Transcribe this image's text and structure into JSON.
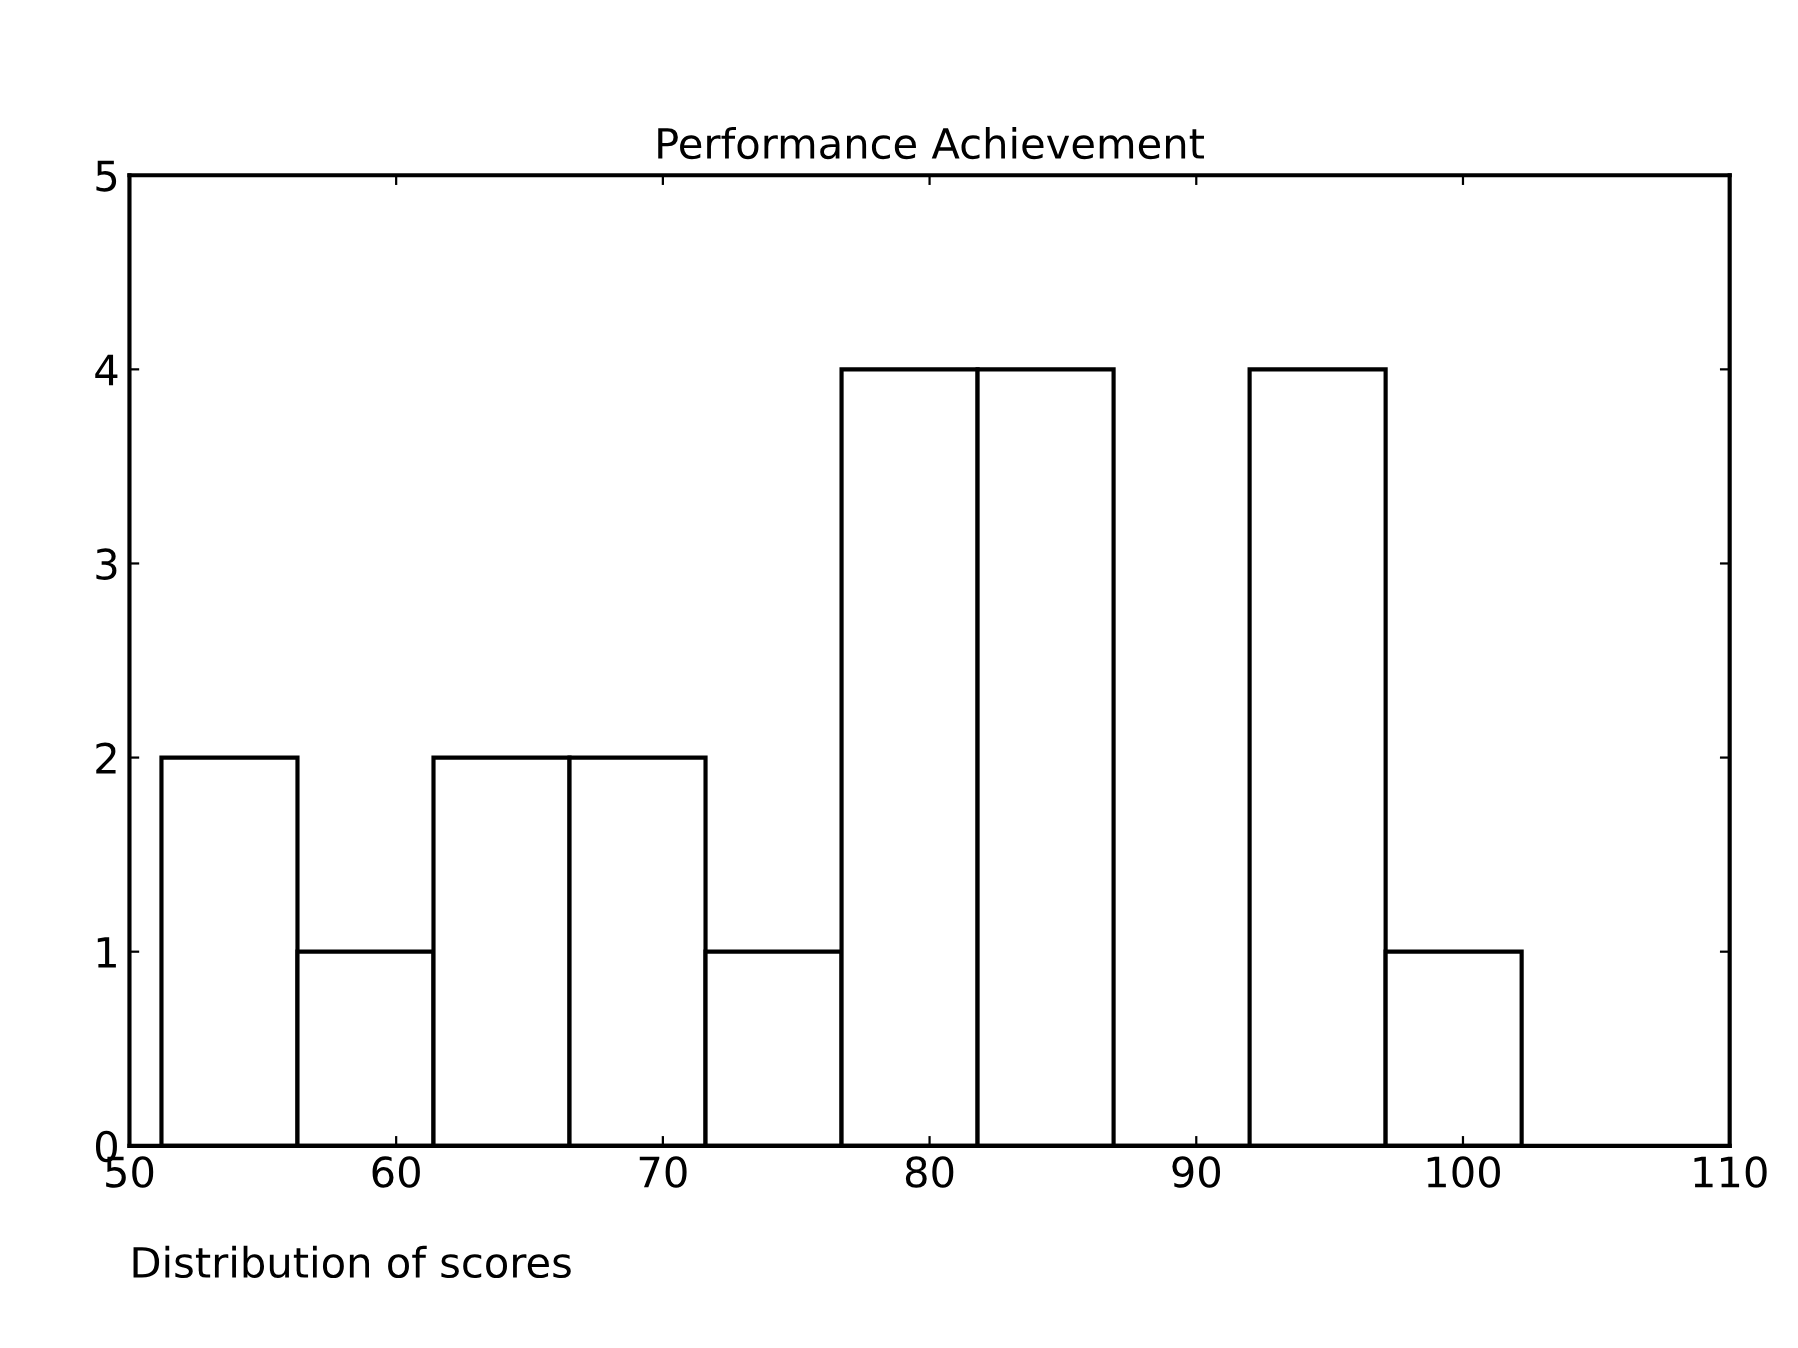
{
  "chart_data": {
    "type": "histogram",
    "title": "Performance Achievement",
    "xlabel": "Distribution of scores",
    "bins": [
      51.2,
      56.3,
      61.4,
      66.5,
      71.6,
      76.7,
      81.8,
      86.9,
      92.0,
      97.1,
      102.2
    ],
    "values": [
      2,
      1,
      2,
      2,
      1,
      4,
      4,
      0,
      4,
      1
    ],
    "color": "#ffffff",
    "xlim": [
      50,
      110
    ],
    "xticks": [
      50,
      60,
      70,
      80,
      90,
      100,
      110
    ],
    "ylim": [
      0,
      5
    ],
    "yticks": [
      0,
      1,
      2,
      3,
      4,
      5
    ],
    "grid": false,
    "legend": false
  }
}
